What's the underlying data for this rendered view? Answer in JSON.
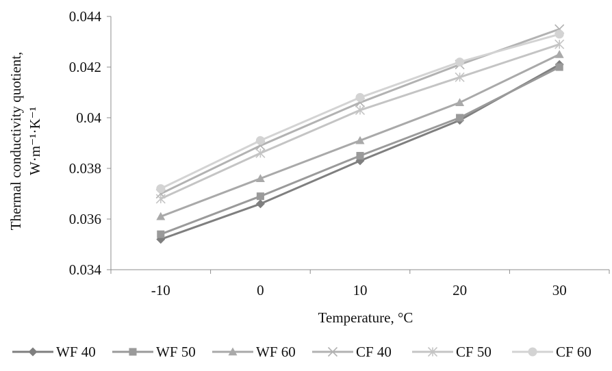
{
  "chart_data": {
    "type": "line",
    "title": "",
    "xlabel": "Temperature, °C",
    "ylabel_line1": "Thermal conductivity quotient,",
    "ylabel_line2": "W·m⁻¹·K⁻¹",
    "categories": [
      "-10",
      "0",
      "10",
      "20",
      "30"
    ],
    "ylim": [
      0.034,
      0.044
    ],
    "yticks": [
      "0.034",
      "0.036",
      "0.038",
      "0.04",
      "0.042",
      "0.044"
    ],
    "grid": false,
    "legend_position": "bottom",
    "series": [
      {
        "name": "WF 40",
        "values": [
          0.0352,
          0.0366,
          0.0383,
          0.0399,
          0.0421
        ],
        "color": "#7f7f7f",
        "marker": "diamond"
      },
      {
        "name": "WF 50",
        "values": [
          0.0354,
          0.0369,
          0.0385,
          0.04,
          0.042
        ],
        "color": "#9a9a9a",
        "marker": "square"
      },
      {
        "name": "WF 60",
        "values": [
          0.0361,
          0.0376,
          0.0391,
          0.0406,
          0.0425
        ],
        "color": "#a9a9a9",
        "marker": "triangle"
      },
      {
        "name": "CF 40",
        "values": [
          0.037,
          0.0389,
          0.0406,
          0.0421,
          0.0435
        ],
        "color": "#b2b2b2",
        "marker": "x"
      },
      {
        "name": "CF 50",
        "values": [
          0.0368,
          0.0386,
          0.0403,
          0.0416,
          0.0429
        ],
        "color": "#c4c4c4",
        "marker": "star"
      },
      {
        "name": "CF 60",
        "values": [
          0.0372,
          0.0391,
          0.0408,
          0.0422,
          0.0433
        ],
        "color": "#d3d3d3",
        "marker": "circle"
      }
    ]
  }
}
